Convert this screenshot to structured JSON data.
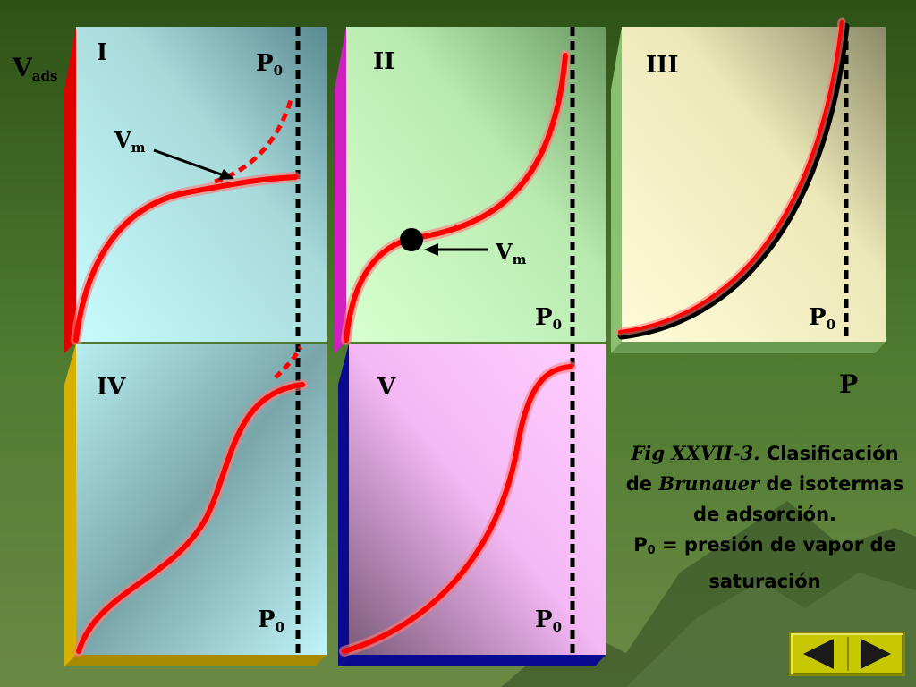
{
  "panels": {
    "I": {
      "label": "I",
      "p0": "P",
      "p0_sub": "0",
      "vm": "V",
      "vm_sub": "m"
    },
    "II": {
      "label": "II",
      "p0": "P",
      "p0_sub": "0",
      "vm": "V",
      "vm_sub": "m"
    },
    "III": {
      "label": "III",
      "p0": "P",
      "p0_sub": "0"
    },
    "IV": {
      "label": "IV",
      "p0": "P",
      "p0_sub": "0"
    },
    "V": {
      "label": "V",
      "p0": "P",
      "p0_sub": "0"
    }
  },
  "axes": {
    "y": "V",
    "y_sub": "ads",
    "x": "P"
  },
  "caption": {
    "fig": "Fig XXVII-3.",
    "text1": " Clasificación de ",
    "brunauer": "Brunauer",
    "text2": " de isotermas de adsorción.",
    "p0": "P",
    "p0_sub": "0",
    "text3": " = presión de vapor de saturación"
  },
  "colors": {
    "curve": "#ff0000",
    "bar_I": "#e00000",
    "bar_II": "#d020c0",
    "bar_IV": "#d8b000",
    "bar_V": "#0a0a90",
    "background": "#4a6a2a"
  },
  "nav": {
    "prev": "triangle-left-icon",
    "next": "triangle-right-icon"
  }
}
